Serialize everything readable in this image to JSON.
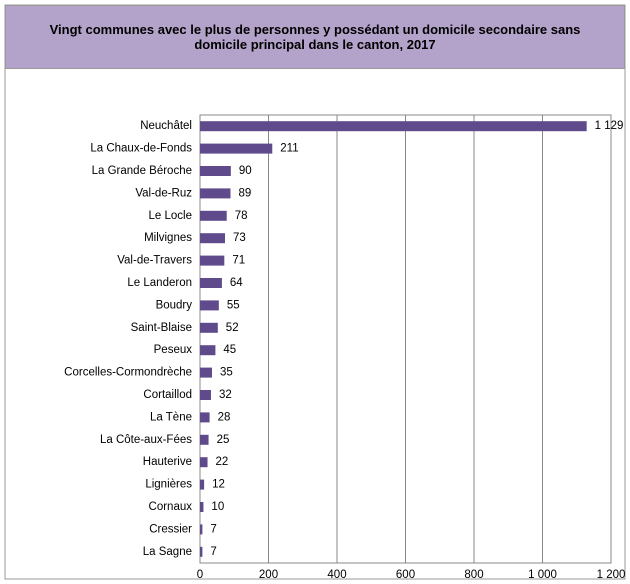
{
  "chart_data": {
    "type": "bar",
    "orientation": "horizontal",
    "title": "Vingt communes avec le plus de personnes y possédant un domicile secondaire sans domicile principal dans le canton, 2017",
    "categories": [
      "Neuchâtel",
      "La Chaux-de-Fonds",
      "La Grande Béroche",
      "Val-de-Ruz",
      "Le Locle",
      "Milvignes",
      "Val-de-Travers",
      "Le Landeron",
      "Boudry",
      "Saint-Blaise",
      "Peseux",
      "Corcelles-Cormondrèche",
      "Cortaillod",
      "La Tène",
      "La Côte-aux-Fées",
      "Hauterive",
      "Lignières",
      "Cornaux",
      "Cressier",
      "La Sagne"
    ],
    "values": [
      1129,
      211,
      90,
      89,
      78,
      73,
      71,
      64,
      55,
      52,
      45,
      35,
      32,
      28,
      25,
      22,
      12,
      10,
      7,
      7
    ],
    "value_labels": [
      "1 129",
      "211",
      "90",
      "89",
      "78",
      "73",
      "71",
      "64",
      "55",
      "52",
      "45",
      "35",
      "32",
      "28",
      "25",
      "22",
      "12",
      "10",
      "7",
      "7"
    ],
    "color": "#5f4b8b",
    "xlim": [
      0,
      1200
    ],
    "xticks": [
      0,
      200,
      400,
      600,
      800,
      {
        "value": 1000,
        "label": "1 000"
      },
      {
        "value": 1200,
        "label": "1 200"
      }
    ],
    "grid": true
  }
}
